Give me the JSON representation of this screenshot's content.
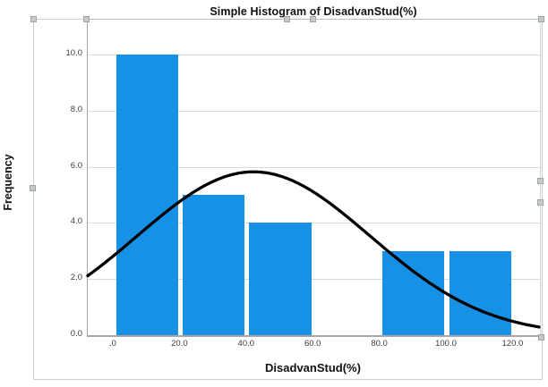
{
  "chart": {
    "title": "Simple Histogram of DisadvanStud(%)",
    "x_axis_title": "DisadvanStud(%)",
    "y_axis_title": "Frequency"
  },
  "chart_data": {
    "type": "bar",
    "subtype": "histogram",
    "title": "Simple Histogram of DisadvanStud(%)",
    "xlabel": "DisadvanStud(%)",
    "ylabel": "Frequency",
    "bin_edges": [
      0,
      20,
      40,
      60,
      80,
      100,
      120
    ],
    "frequencies": [
      10,
      5,
      4,
      0,
      3,
      3
    ],
    "x_ticks": [
      0,
      20,
      40,
      60,
      80,
      100,
      120
    ],
    "x_tick_labels": [
      ".0",
      "20.0",
      "40.0",
      "60.0",
      "80.0",
      "100.0",
      "120.0"
    ],
    "y_ticks": [
      0,
      2,
      4,
      6,
      8,
      10
    ],
    "y_tick_labels": [
      "0.0",
      "2.0",
      "4.0",
      "6.0",
      "8.0",
      "10.0"
    ],
    "xlim": [
      -7.8,
      128
    ],
    "ylim": [
      0,
      11.2
    ],
    "grid": "horizontal-y-ticks",
    "legend": "none",
    "bar_color": "#1791e6",
    "normal_curve": {
      "mean": 42,
      "sd": 35,
      "peak": 5.82,
      "color": "#000000",
      "width": 3.3
    }
  },
  "selection": {
    "state": "object-selected-with-resize-handles",
    "handle_color": "#c4c8ca"
  }
}
